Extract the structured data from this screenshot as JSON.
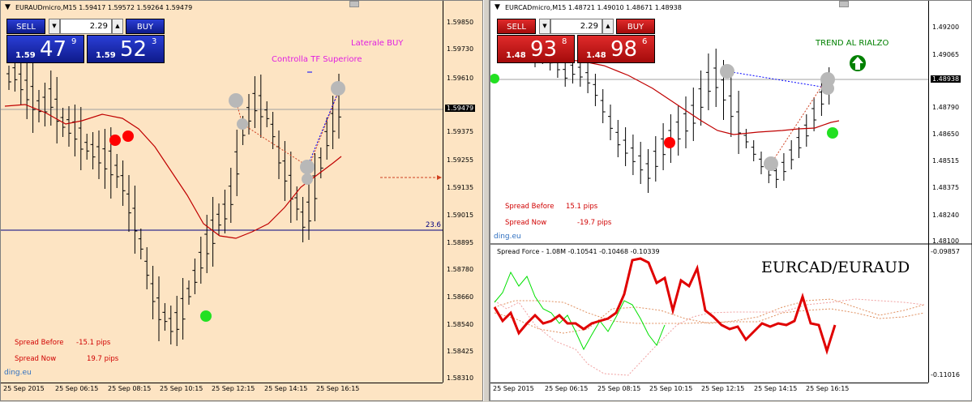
{
  "left": {
    "title": "EURAUDmicro,M15  1.59417 1.59572 1.59264 1.59479",
    "sell_label": "SELL",
    "buy_label": "BUY",
    "lot": "2.29",
    "sell_prefix": "1.59",
    "sell_big": "47",
    "sell_sup": "9",
    "buy_prefix": "1.59",
    "buy_big": "52",
    "buy_sup": "3",
    "annotation_1": "Laterale BUY",
    "annotation_2": "Controlla TF Superiore",
    "spread_before_label": "Spread Before",
    "spread_before_value": "-15.1 pips",
    "spread_now_label": "Spread Now",
    "spread_now_value": "19.7 pips",
    "fib_label": "23.6",
    "watermark": "ding.eu",
    "price_labels": [
      "1.59850",
      "1.59730",
      "1.59610",
      "1.59479",
      "1.59375",
      "1.59255",
      "1.59135",
      "1.59015",
      "1.58895",
      "1.58780",
      "1.58660",
      "1.58540",
      "1.58425",
      "1.58310"
    ],
    "time_labels": [
      "25 Sep 2015",
      "25 Sep 06:15",
      "25 Sep 08:15",
      "25 Sep 10:15",
      "25 Sep 12:15",
      "25 Sep 14:15",
      "25 Sep 16:15"
    ]
  },
  "right": {
    "title": "EURCADmicro,M15  1.48721 1.49010 1.48671 1.48938",
    "sell_label": "SELL",
    "buy_label": "BUY",
    "lot": "2.29",
    "sell_prefix": "1.48",
    "sell_big": "93",
    "sell_sup": "8",
    "buy_prefix": "1.48",
    "buy_big": "98",
    "buy_sup": "6",
    "annotation": "TREND AL RIALZO",
    "spread_before_label": "Spread Before",
    "spread_before_value": "15.1 pips",
    "spread_now_label": "Spread Now",
    "spread_now_value": "-19.7 pips",
    "watermark": "ding.eu",
    "price_labels": [
      "1.49200",
      "1.49065",
      "1.48938",
      "1.48790",
      "1.48650",
      "1.48515",
      "1.48375",
      "1.48240",
      "1.48100"
    ],
    "indicator_title": "Spread Force - 1.08M -0.10541 -0.10468 -0.10339",
    "indicator_labels": [
      "-0.09857",
      "-0.11016"
    ],
    "pair_label": "EURCAD/EURAUD",
    "time_labels": [
      "25 Sep 2015",
      "25 Sep 06:15",
      "25 Sep 08:15",
      "25 Sep 10:15",
      "25 Sep 12:15",
      "25 Sep 14:15",
      "25 Sep 16:15"
    ]
  },
  "colors": {
    "left_bg": "#fde4c3",
    "sell_blue": "#1a2bb8",
    "sell_red": "#c81414",
    "ma_red": "#c00000",
    "dot_red": "#ff0000",
    "dot_green": "#22e022",
    "annotation_magenta": "#e020e0",
    "trend_green": "#008000",
    "spread_red": "#d00000"
  }
}
